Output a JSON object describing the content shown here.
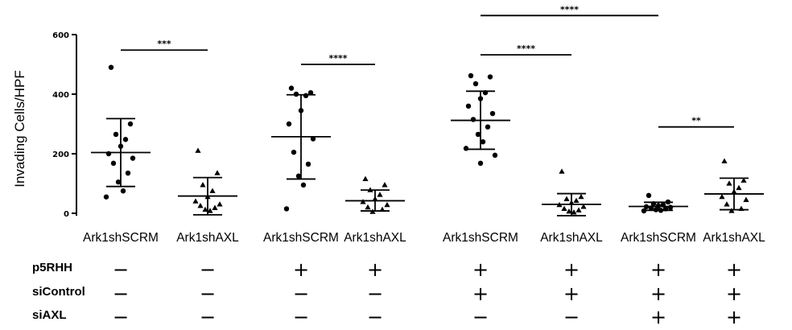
{
  "chart_data": {
    "type": "scatter",
    "ylabel": "Invading Cells/HPF",
    "ylim": [
      0,
      600
    ],
    "yticks": [
      0,
      200,
      400,
      600
    ],
    "categories": [
      "Ark1shSCRM",
      "Ark1shAXL",
      "Ark1shSCRM",
      "Ark1shAXL",
      "Ark1shSCRM",
      "Ark1shAXL",
      "Ark1shSCRM",
      "Ark1shAXL"
    ],
    "groups": [
      {
        "marker": "circle",
        "mean": 204,
        "sd_low": 90,
        "sd_high": 318,
        "points": [
          490,
          300,
          265,
          248,
          225,
          200,
          185,
          168,
          135,
          105,
          75,
          55
        ]
      },
      {
        "marker": "triangle",
        "mean": 58,
        "sd_low": -5,
        "sd_high": 120,
        "points": [
          210,
          135,
          95,
          75,
          55,
          40,
          30,
          25,
          18,
          12,
          8
        ]
      },
      {
        "marker": "circle",
        "mean": 257,
        "sd_low": 115,
        "sd_high": 398,
        "points": [
          420,
          405,
          400,
          395,
          345,
          300,
          250,
          205,
          165,
          125,
          95,
          15
        ]
      },
      {
        "marker": "triangle",
        "mean": 42,
        "sd_low": 8,
        "sd_high": 78,
        "points": [
          115,
          95,
          78,
          62,
          48,
          38,
          28,
          20,
          12,
          5
        ]
      },
      {
        "marker": "circle",
        "mean": 312,
        "sd_low": 215,
        "sd_high": 410,
        "points": [
          462,
          458,
          435,
          405,
          385,
          360,
          335,
          315,
          290,
          265,
          240,
          218,
          195,
          168
        ]
      },
      {
        "marker": "triangle",
        "mean": 30,
        "sd_low": -8,
        "sd_high": 66,
        "points": [
          140,
          55,
          48,
          42,
          35,
          28,
          22,
          15,
          10,
          6,
          3
        ]
      },
      {
        "marker": "circle",
        "mean": 23,
        "sd_low": 10,
        "sd_high": 37,
        "points": [
          60,
          38,
          32,
          28,
          25,
          22,
          20,
          18,
          15,
          12,
          10,
          8
        ]
      },
      {
        "marker": "triangle",
        "mean": 65,
        "sd_low": 12,
        "sd_high": 118,
        "points": [
          175,
          110,
          100,
          85,
          72,
          55,
          45,
          30,
          15,
          8
        ]
      }
    ],
    "significance": [
      {
        "from": 0,
        "to": 1,
        "y": 548,
        "label": "***"
      },
      {
        "from": 2,
        "to": 3,
        "y": 500,
        "label": "****"
      },
      {
        "from": 4,
        "to": 5,
        "y": 532,
        "label": "****"
      },
      {
        "from": 4,
        "to": 6,
        "y": 664,
        "label": "****"
      },
      {
        "from": 6,
        "to": 7,
        "y": 290,
        "label": "**"
      }
    ]
  },
  "conditions": [
    {
      "label": "p5RHH",
      "values": [
        "−",
        "−",
        "+",
        "+",
        "+",
        "+",
        "+",
        "+"
      ]
    },
    {
      "label": "siControl",
      "values": [
        "−",
        "−",
        "−",
        "−",
        "+",
        "+",
        "+",
        "+"
      ]
    },
    {
      "label": "siAXL",
      "values": [
        "−",
        "−",
        "−",
        "−",
        "−",
        "−",
        "+",
        "+"
      ]
    }
  ]
}
